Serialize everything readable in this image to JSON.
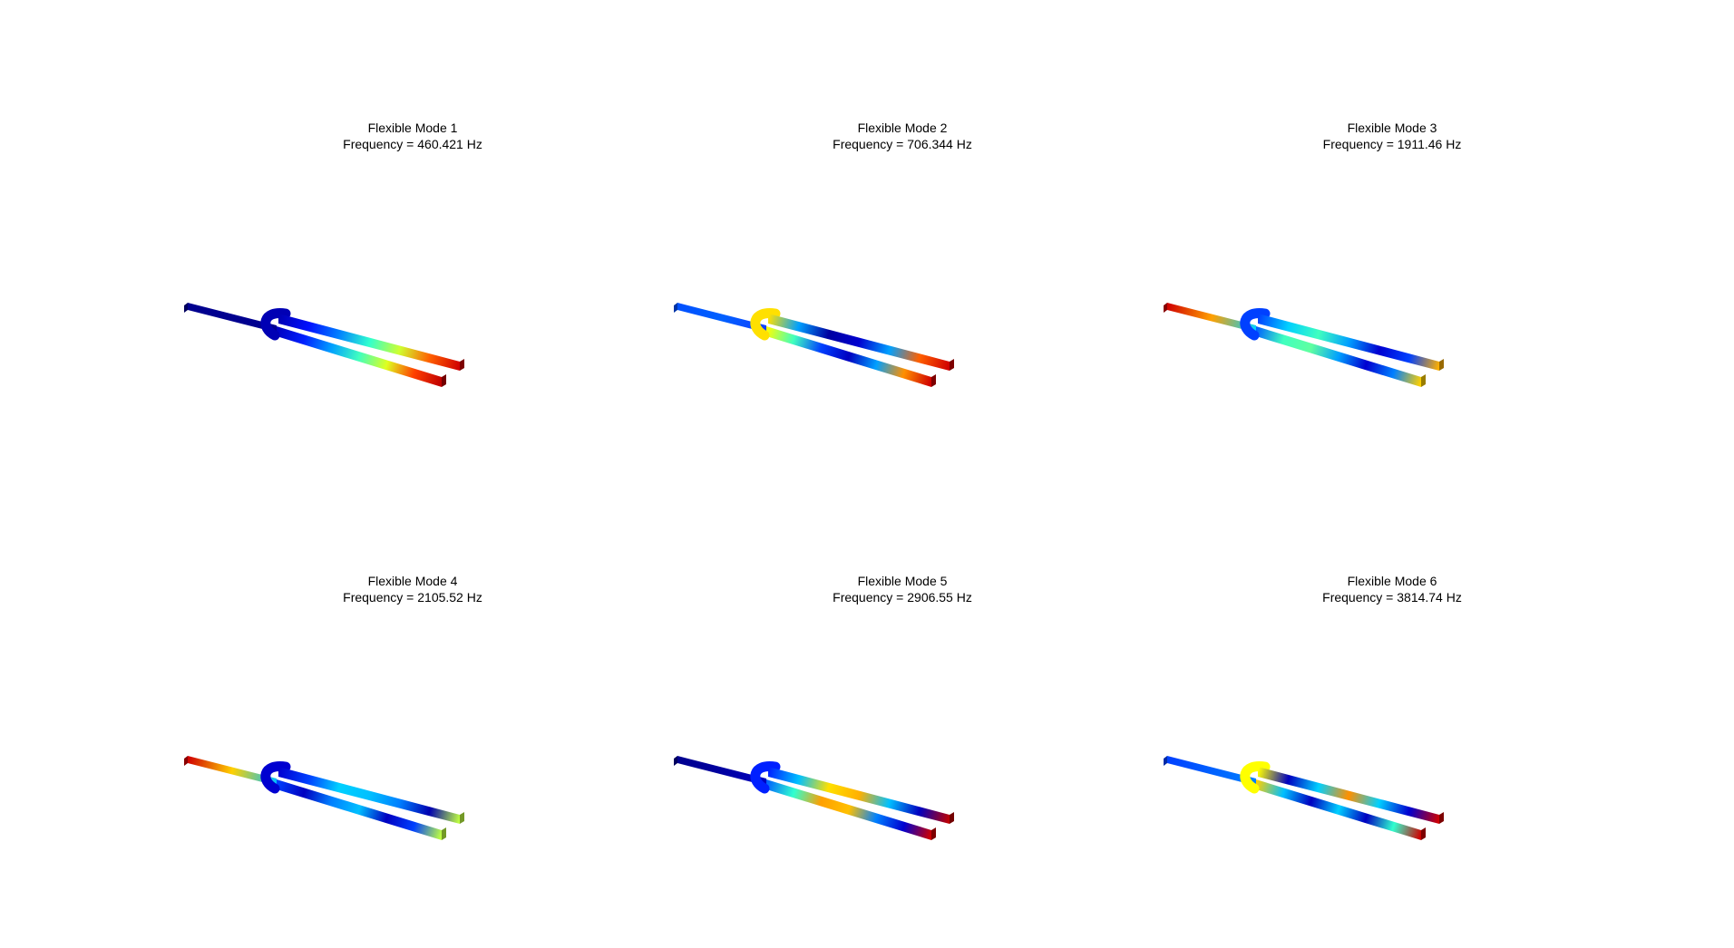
{
  "panels": [
    {
      "title": "Flexible Mode 1",
      "frequency": "Frequency = 460.421 Hz",
      "colors": {
        "stem": [
          "#00008f",
          "#00008f",
          "#000090"
        ],
        "upper": [
          "#0000b4",
          "#0010ff",
          "#0080ff",
          "#30ffcf",
          "#cfff30",
          "#ff6000",
          "#d00000"
        ],
        "lower": [
          "#0000c0",
          "#0020ff",
          "#00a0ff",
          "#40ffbf",
          "#dfff20",
          "#ff4000",
          "#c00000"
        ]
      }
    },
    {
      "title": "Flexible Mode 2",
      "frequency": "Frequency = 706.344 Hz",
      "colors": {
        "stem": [
          "#0050ff",
          "#0060ff",
          "#1040ff"
        ],
        "upper": [
          "#ffe000",
          "#00a0ff",
          "#0000a0",
          "#0000d0",
          "#00a0ff",
          "#ff6000",
          "#d00000"
        ],
        "lower": [
          "#ffff00",
          "#40ffbf",
          "#0040ff",
          "#0000c0",
          "#00a0ff",
          "#ff9000",
          "#d00000"
        ]
      }
    },
    {
      "title": "Flexible Mode 3",
      "frequency": "Frequency = 1911.46 Hz",
      "colors": {
        "stem": [
          "#d00000",
          "#ffa000",
          "#00d0ff"
        ],
        "upper": [
          "#0040ff",
          "#00d0ff",
          "#40ffbf",
          "#00a0ff",
          "#0000d0",
          "#0040ff",
          "#ffb000"
        ],
        "lower": [
          "#0060ff",
          "#40ffbf",
          "#60ffa0",
          "#00a0ff",
          "#0000d0",
          "#0080ff",
          "#ffd000"
        ]
      }
    },
    {
      "title": "Flexible Mode 4",
      "frequency": "Frequency = 2105.52 Hz",
      "colors": {
        "stem": [
          "#d00000",
          "#ffd000",
          "#00c0ff"
        ],
        "upper": [
          "#0000d0",
          "#0040ff",
          "#00d0ff",
          "#00c0ff",
          "#0080ff",
          "#0000b0",
          "#bfff40"
        ],
        "lower": [
          "#0040ff",
          "#0000c0",
          "#0080ff",
          "#00c0ff",
          "#0000c0",
          "#0040ff",
          "#bfff40"
        ]
      }
    },
    {
      "title": "Flexible Mode 5",
      "frequency": "Frequency = 2906.55 Hz",
      "colors": {
        "stem": [
          "#00008f",
          "#0000a0",
          "#0000c0"
        ],
        "upper": [
          "#0020ff",
          "#00c0ff",
          "#ffe000",
          "#ffb000",
          "#00c0ff",
          "#0000c0",
          "#c00000"
        ],
        "lower": [
          "#0060ff",
          "#30ffcf",
          "#ffa000",
          "#ffc000",
          "#0080ff",
          "#0000d0",
          "#d00000"
        ]
      }
    },
    {
      "title": "Flexible Mode 6",
      "frequency": "Frequency = 3814.74 Hz",
      "colors": {
        "stem": [
          "#0040ff",
          "#0060ff",
          "#0080ff"
        ],
        "upper": [
          "#ffff00",
          "#0000c0",
          "#00d0ff",
          "#ff9000",
          "#00d0ff",
          "#0000d0",
          "#d00000"
        ],
        "lower": [
          "#ffd000",
          "#00c0ff",
          "#0000c0",
          "#00d0ff",
          "#0000c0",
          "#30ffcf",
          "#d00000"
        ]
      }
    }
  ]
}
